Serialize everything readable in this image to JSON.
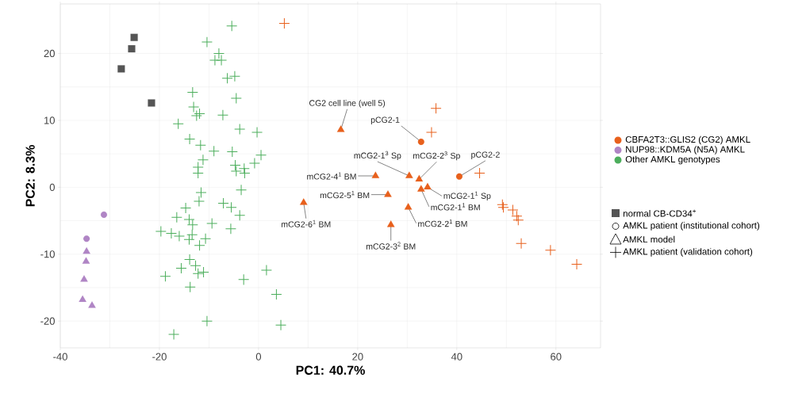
{
  "chart_data": {
    "type": "scatter",
    "xlabel": "PC1: 40.7%",
    "ylabel": "PC2: 8.3%",
    "xlim": [
      -40,
      69
    ],
    "ylim": [
      -24,
      27.4
    ],
    "xticks": [
      -40,
      -20,
      0,
      20,
      40,
      60
    ],
    "yticks": [
      -20,
      -10,
      0,
      10,
      20
    ],
    "grid": true,
    "legend": "right",
    "series": [
      {
        "name": "normal  CB-CD34$^{+}$",
        "color": "#555555",
        "marker": "square",
        "x": [
          -25.1,
          -25.6,
          -27.7,
          -21.6
        ],
        "values": [
          22.4,
          20.7,
          17.7,
          12.6
        ]
      },
      {
        "name": "CBFA2T3::GLIS2 (CG2) AMKL",
        "color": "#e8601c",
        "marker": "circle",
        "x": [
          32.8,
          40.5
        ],
        "values": [
          6.8,
          1.6
        ]
      },
      {
        "name": "NUP98::KDM5A (N5A) AMKL",
        "color": "#b085c5",
        "marker": "circle",
        "x": [
          -31.2,
          -34.7
        ],
        "values": [
          -4.1,
          -7.7
        ]
      },
      {
        "name": "Other AMKL genotypes",
        "color": "#4cae5c",
        "marker": "cross",
        "x": [
          -5.4,
          -10.4,
          -8.0,
          -8.8,
          -7.5,
          -6.3,
          -4.8,
          -13.3,
          -4.5,
          -13.1,
          -11.9,
          -12.5,
          -7.2,
          -16.2,
          -3.8,
          -0.3,
          -13.9,
          -11.7,
          -9.0,
          -5.3,
          0.5,
          -11.2,
          -0.8,
          -4.7,
          -2.9,
          -12.2,
          -4.5,
          -2.8,
          -12.2,
          -3.5,
          -11.6,
          -12.0,
          -7.1,
          -5.5,
          -14.7,
          -3.8,
          -16.5,
          -14.0,
          -13.3,
          -9.4,
          -5.6,
          -19.7,
          -17.6,
          -16.0,
          -13.4,
          -14.0,
          -10.7,
          -11.9,
          -13.9,
          -15.6,
          -12.7,
          -12.2,
          -11.1,
          -18.8,
          -13.8,
          -3.0,
          1.6,
          3.6,
          -10.4,
          4.5,
          -17.1
        ],
        "values": [
          24.1,
          21.7,
          20.0,
          19.0,
          19.0,
          16.3,
          16.6,
          14.2,
          13.3,
          12.0,
          11.0,
          10.7,
          10.8,
          9.5,
          8.7,
          8.2,
          7.2,
          6.3,
          5.4,
          5.3,
          4.8,
          4.1,
          3.6,
          3.3,
          2.8,
          3.0,
          2.4,
          2.1,
          2.1,
          -0.4,
          -0.8,
          -2.1,
          -2.4,
          -3.0,
          -3.1,
          -4.2,
          -4.5,
          -4.8,
          -5.6,
          -5.4,
          -6.2,
          -6.6,
          -6.9,
          -7.3,
          -7.1,
          -7.8,
          -7.7,
          -8.7,
          -10.8,
          -12.1,
          -11.7,
          -12.9,
          -12.7,
          -13.3,
          -14.9,
          -13.8,
          -12.4,
          -16.0,
          -20.0,
          -20.6,
          -22.0
        ]
      },
      {
        "color": "#e8601c",
        "marker": "triangle",
        "x": [
          16.6,
          23.6,
          30.4,
          32.4,
          34.1,
          32.8,
          26.1,
          9.1,
          30.2,
          26.7
        ],
        "values": [
          8.6,
          1.7,
          1.7,
          1.2,
          0.0,
          -0.3,
          -1.1,
          -2.3,
          -3.0,
          -5.6
        ]
      },
      {
        "color": "#e8601c",
        "marker": "cross",
        "x": [
          5.2,
          35.8,
          34.9,
          44.6,
          49.2,
          49.4,
          51.3,
          52.1,
          52.4,
          53.0,
          58.9,
          64.2
        ],
        "values": [
          24.5,
          11.8,
          8.2,
          2.1,
          -2.6,
          -3.0,
          -3.4,
          -4.3,
          -4.9,
          -8.4,
          -9.4,
          -11.5
        ]
      },
      {
        "color": "#b085c5",
        "marker": "triangle",
        "x": [
          -34.7,
          -34.8,
          -35.2,
          -35.5,
          -33.6
        ],
        "values": [
          -9.6,
          -11.1,
          -13.8,
          -16.8,
          -17.7
        ]
      }
    ],
    "annotations": [
      "AMKL patient (institutional cohort)",
      "AMKL model",
      "AMKL patient (validation cohort)",
      {
        "text": "CG2 cell line (well 5)",
        "x": 16.6,
        "y": 8.6
      },
      {
        "text": "pCG2-1",
        "x": 32.8,
        "y": 6.8
      },
      {
        "text": "pCG2-2",
        "x": 40.5,
        "y": 1.6
      },
      {
        "text": "mCG2-4$^{1}$ BM",
        "x": 23.6,
        "y": 1.7
      },
      {
        "text": "mCG2-1$^{3}$ Sp",
        "x": 30.4,
        "y": 1.7
      },
      {
        "text": "mCG2-2$^{3}$ Sp",
        "x": 32.4,
        "y": 1.2
      },
      {
        "text": "mCG2-1$^{1}$ Sp",
        "x": 34.1,
        "y": 0.0
      },
      {
        "text": "mCG2-1$^{1}$ BM",
        "x": 32.8,
        "y": -0.3
      },
      {
        "text": "mCG2-5$^{1}$ BM",
        "x": 26.1,
        "y": -1.1
      },
      {
        "text": "mCG2-6$^{1}$ BM",
        "x": 9.1,
        "y": -2.3
      },
      {
        "text": "mCG2-2$^{1}$ BM",
        "x": 30.2,
        "y": -3.0
      },
      {
        "text": "mCG2-3$^{2}$ BM",
        "x": 26.7,
        "y": -5.6
      }
    ]
  }
}
